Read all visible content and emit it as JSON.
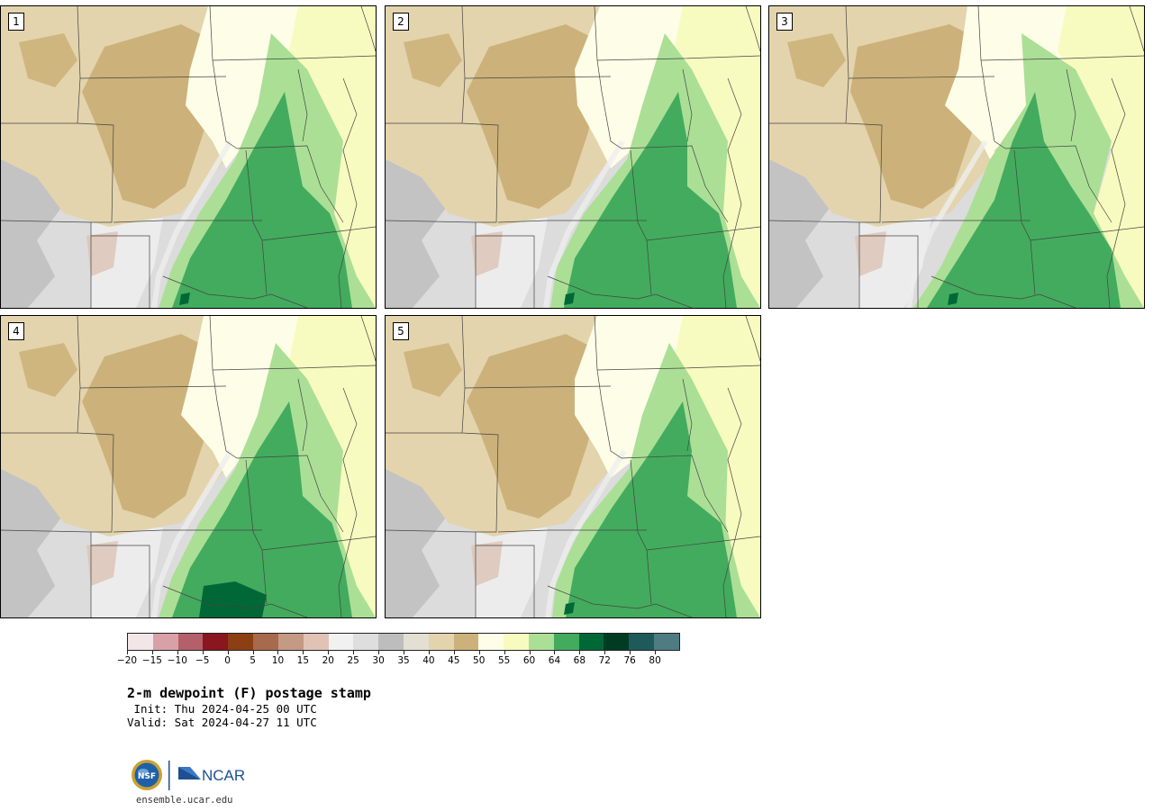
{
  "panels": [
    {
      "label": "1"
    },
    {
      "label": "2"
    },
    {
      "label": "3"
    },
    {
      "label": "4"
    },
    {
      "label": "5"
    }
  ],
  "colorbar": {
    "colors": [
      "#f3e6e8",
      "#d8a1a8",
      "#b3606a",
      "#8a1620",
      "#8b3f12",
      "#a86a4c",
      "#c49a84",
      "#e0c3b4",
      "#f1f1f1",
      "#dedede",
      "#bdbdbd",
      "#e3e0d3",
      "#e3d4ad",
      "#ccb27a",
      "#fefde8",
      "#f8fbbf",
      "#abdf96",
      "#43ab5e",
      "#006837",
      "#003c24",
      "#1f5a5a",
      "#4f7b82"
    ],
    "ticks": [
      "−20",
      "−15",
      "−10",
      "−5",
      "0",
      "5",
      "10",
      "15",
      "20",
      "25",
      "30",
      "35",
      "40",
      "45",
      "50",
      "55",
      "60",
      "64",
      "68",
      "72",
      "76",
      "80"
    ]
  },
  "title": "2-m dewpoint (F) postage stamp",
  "init": " Init: Thu 2024-04-25 00 UTC",
  "valid": "Valid: Sat 2024-04-27 11 UTC",
  "logos": {
    "nsf_text": "NSF",
    "ncar_text": "NCAR"
  },
  "site": "ensemble.ucar.edu",
  "field_colors": {
    "gray": "#dcdcdc",
    "lightgray": "#ececec",
    "darkgray": "#b8b8b8",
    "pinkbrown": "#dcc3b4",
    "tan_light": "#e3d4ad",
    "tan_dark": "#ccb27a",
    "cream": "#fefde8",
    "yellow": "#f8fbbf",
    "lightgreen": "#abdf96",
    "green": "#43ab5e",
    "darkgreen": "#006837"
  }
}
